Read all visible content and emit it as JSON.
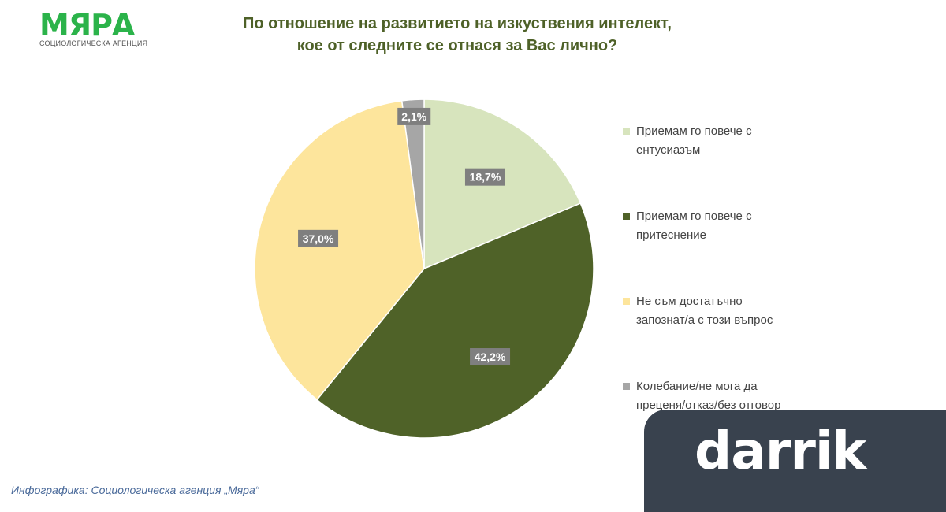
{
  "logo": {
    "name": "МЯРА",
    "subtitle": "СОЦИОЛОГИЧЕСКА АГЕНЦИЯ"
  },
  "chart_data": {
    "type": "pie",
    "title_lines": [
      "По отношение на развитието на изкуствения интелект,",
      "кое от следните се отнася за Вас лично?"
    ],
    "start": "top",
    "direction": "clockwise",
    "slices": [
      {
        "name": "Приемам го повече с ентусиазъм",
        "value": 18.7,
        "label": "18,7%",
        "color": "#d7e4bd"
      },
      {
        "name": "Приемам го повече с притеснение",
        "value": 42.2,
        "label": "42,2%",
        "color": "#4f6228"
      },
      {
        "name": "Не съм достатъчно запознат/а с този въпрос",
        "value": 37.0,
        "label": "37,0%",
        "color": "#fde59c"
      },
      {
        "name": "Колебание/не мога да преценя/отказ/без отговор",
        "value": 2.1,
        "label": "2,1%",
        "color": "#a6a6a6"
      }
    ],
    "legend_position": "right",
    "legend_lines": [
      [
        "Приемам го повече с",
        "ентусиазъм"
      ],
      [
        "Приемам го повече с",
        "притеснение"
      ],
      [
        "Не съм достатъчно",
        "запознат/а с този въпрос"
      ],
      [
        "Колебание/не мога да",
        "преценя/отказ/без отговор"
      ]
    ]
  },
  "footer": "Инфографика: Социологическа агенция „Мяра“",
  "watermark": "darrik"
}
